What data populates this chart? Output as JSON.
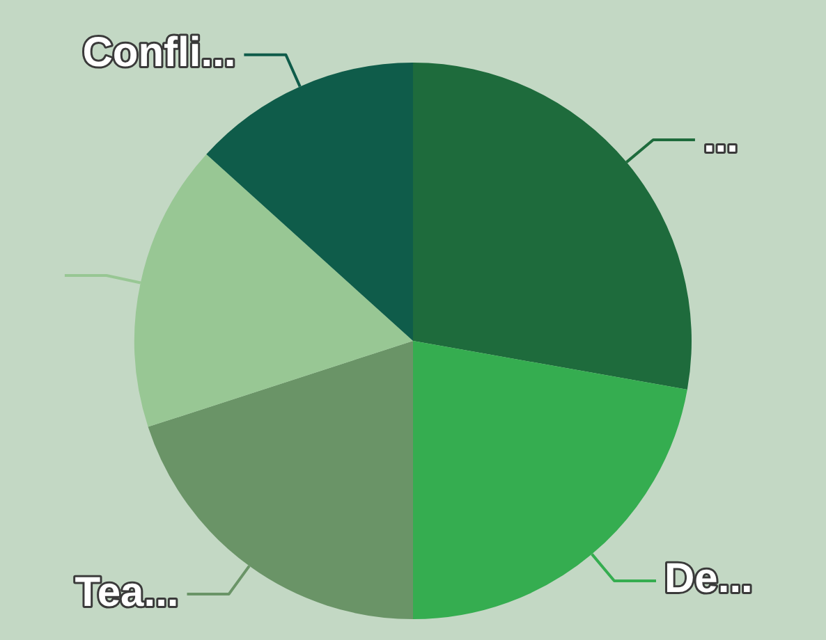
{
  "chart_data": {
    "type": "pie",
    "categories": [
      "...",
      "De...",
      "Tea...",
      null,
      "Confli..."
    ],
    "values": [
      27.8,
      22.2,
      20,
      16.7,
      13.3
    ],
    "colors": [
      "#1e6b3c",
      "#35ad50",
      "#6a9467",
      "#98c794",
      "#0f5c4a"
    ],
    "legend": false
  }
}
